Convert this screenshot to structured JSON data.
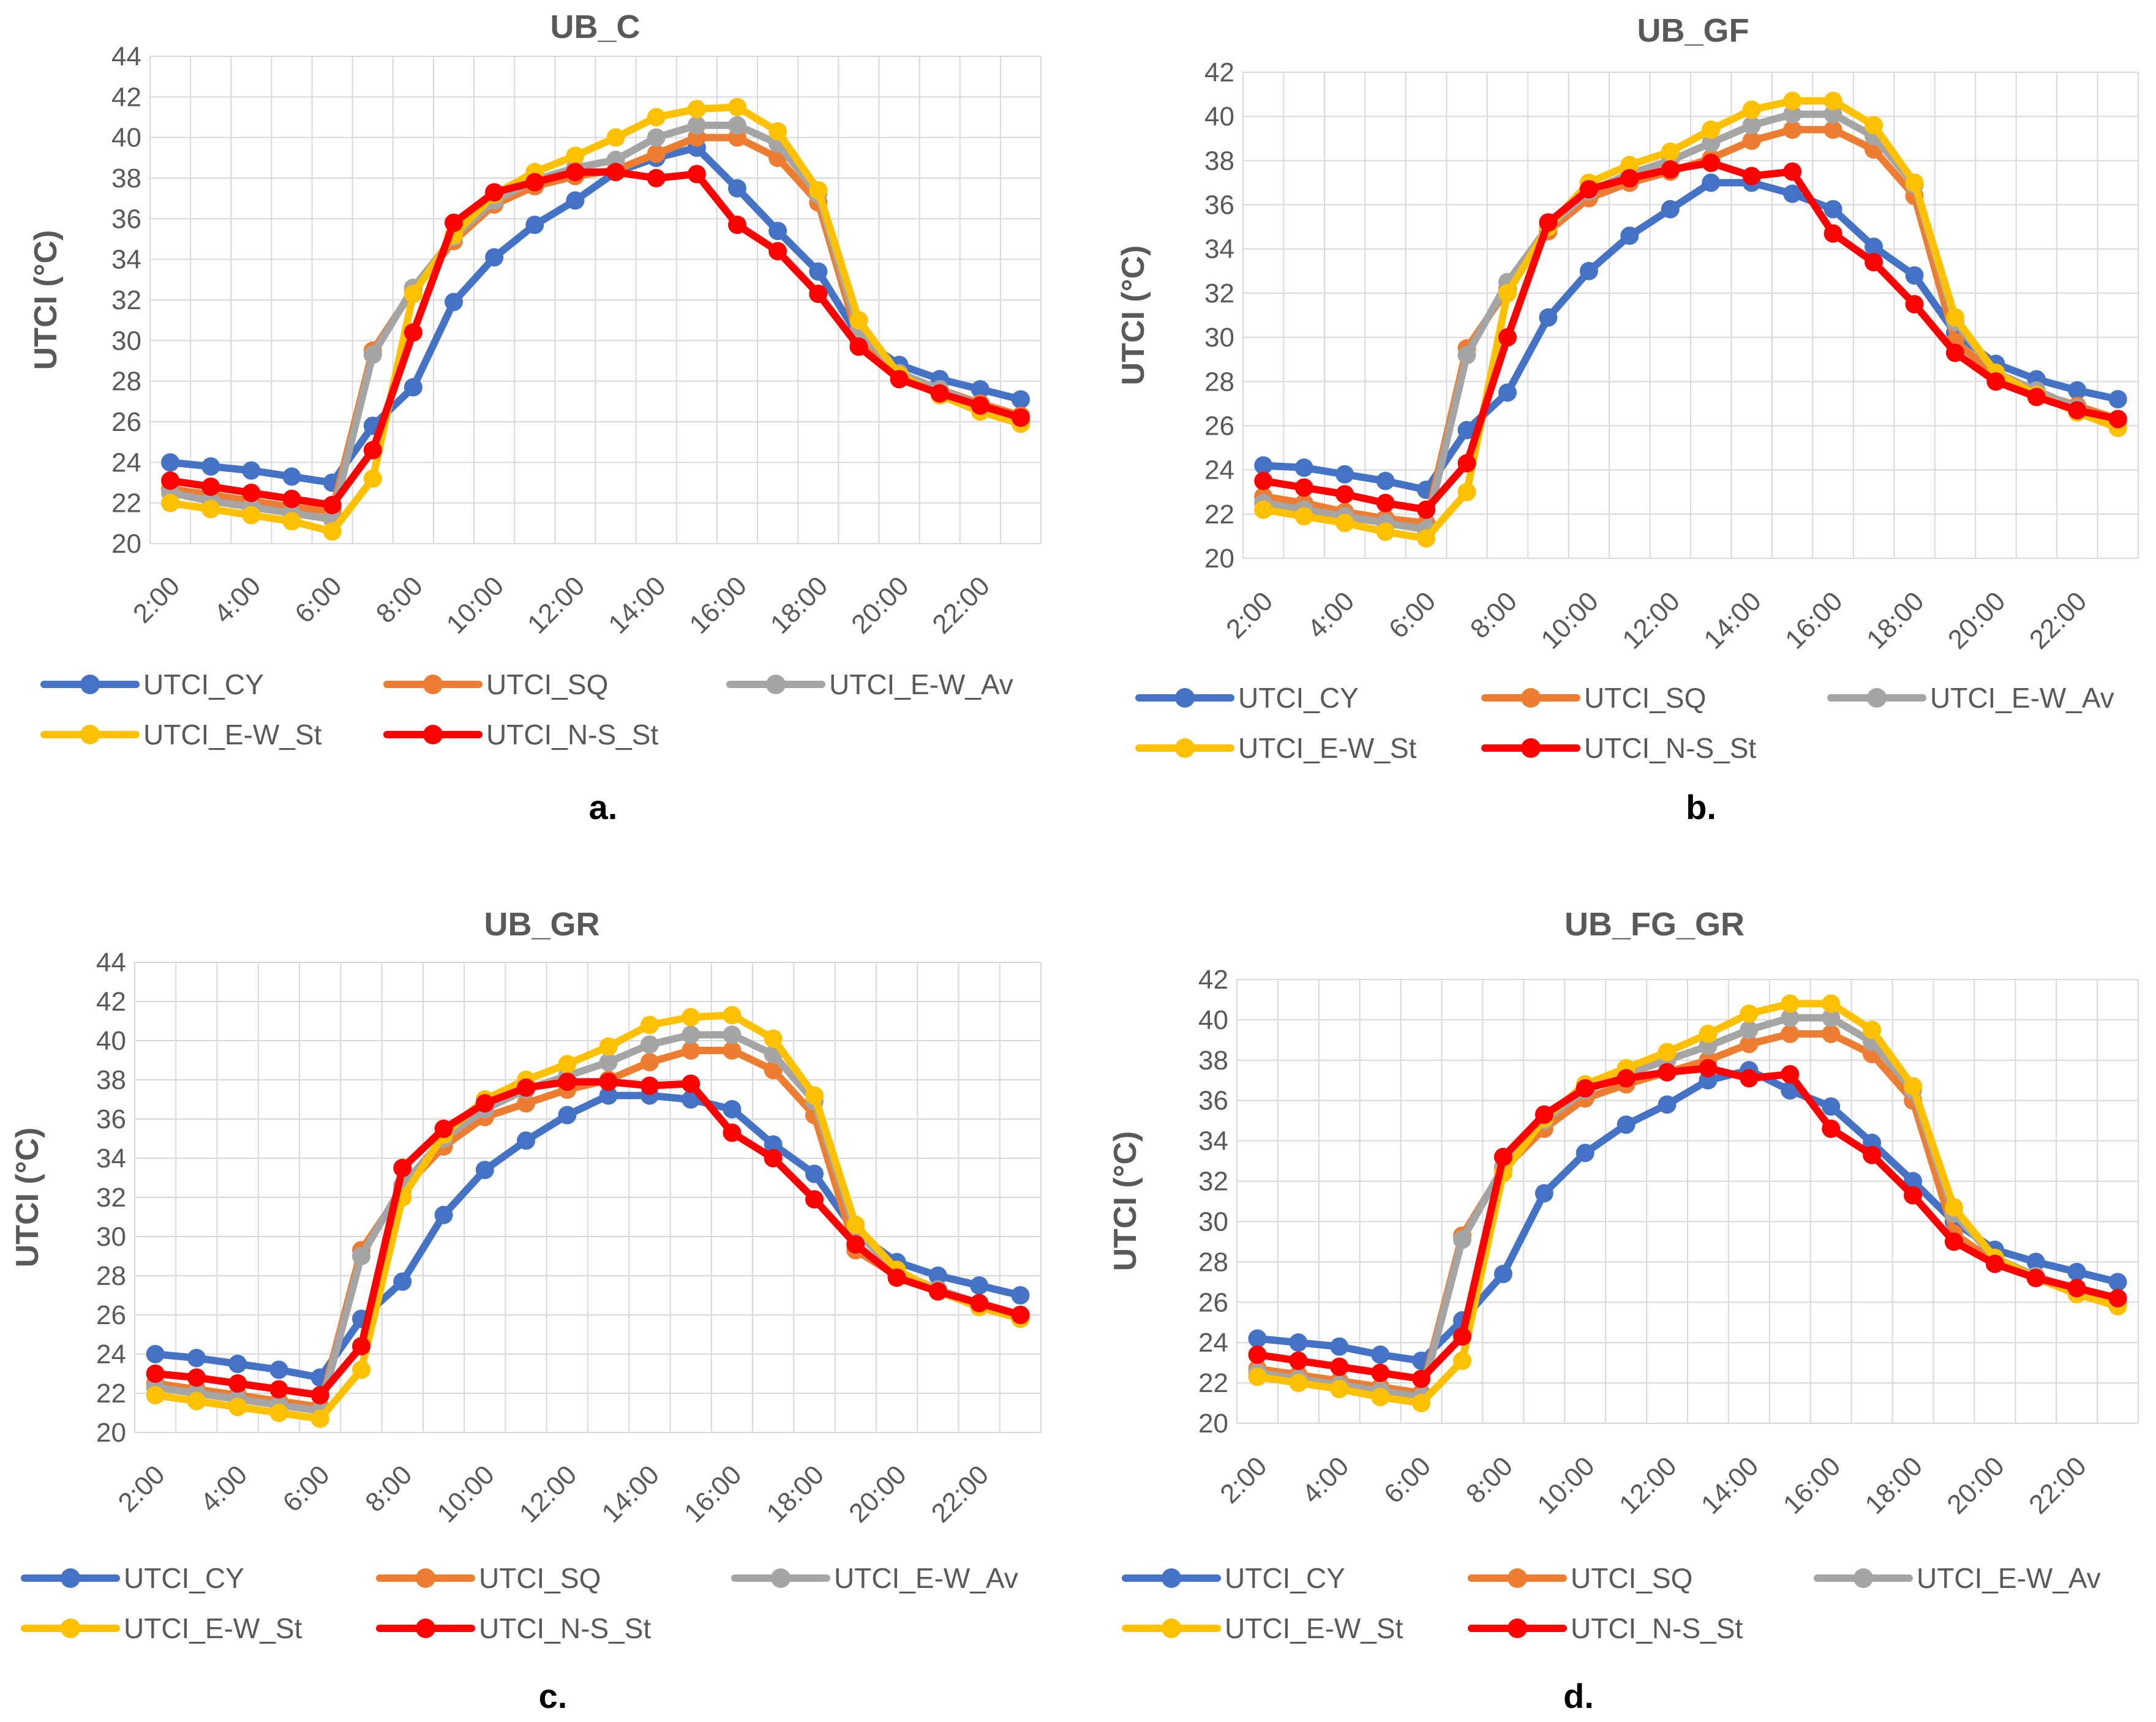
{
  "panel_letters": [
    "a.",
    "b.",
    "c.",
    "d."
  ],
  "chart_data": [
    {
      "type": "line",
      "title": "UB_C",
      "xlabel": "",
      "ylabel": "UTCI (°C)",
      "ylim": [
        20,
        44
      ],
      "yticks": [
        20,
        22,
        24,
        26,
        28,
        30,
        32,
        34,
        36,
        38,
        40,
        42,
        44
      ],
      "categories": [
        "2:00",
        "3:00",
        "4:00",
        "5:00",
        "6:00",
        "7:00",
        "8:00",
        "9:00",
        "10:00",
        "11:00",
        "12:00",
        "13:00",
        "14:00",
        "15:00",
        "16:00",
        "17:00",
        "18:00",
        "19:00",
        "20:00",
        "21:00",
        "22:00",
        "23:00"
      ],
      "xtick_labels": [
        "2:00",
        "4:00",
        "6:00",
        "8:00",
        "10:00",
        "12:00",
        "14:00",
        "16:00",
        "18:00",
        "20:00",
        "22:00"
      ],
      "grid": true,
      "legend": "bottom",
      "series": [
        {
          "name": "UTCI_CY",
          "color": "#4472C4",
          "values": [
            24.0,
            23.8,
            23.6,
            23.3,
            23.0,
            25.8,
            27.7,
            31.9,
            34.1,
            35.7,
            36.9,
            38.3,
            39.0,
            39.5,
            37.5,
            35.4,
            33.4,
            30.2,
            28.8,
            28.1,
            27.6,
            27.1
          ]
        },
        {
          "name": "UTCI_SQ",
          "color": "#ED7D31",
          "values": [
            22.7,
            22.4,
            22.1,
            21.8,
            21.6,
            29.5,
            32.5,
            34.9,
            36.7,
            37.6,
            38.1,
            38.4,
            39.2,
            40.0,
            40.0,
            39.0,
            36.8,
            30.0,
            28.3,
            27.6,
            26.9,
            26.3
          ]
        },
        {
          "name": "UTCI_E-W_Av",
          "color": "#A5A5A5",
          "values": [
            22.5,
            22.1,
            21.8,
            21.5,
            21.2,
            29.3,
            32.6,
            35.1,
            36.9,
            37.9,
            38.5,
            38.9,
            40.0,
            40.6,
            40.6,
            39.7,
            37.2,
            30.5,
            28.4,
            27.6,
            26.8,
            26.1
          ]
        },
        {
          "name": "UTCI_E-W_St",
          "color": "#FFC000",
          "values": [
            22.0,
            21.7,
            21.4,
            21.1,
            20.6,
            23.2,
            32.3,
            35.2,
            37.2,
            38.3,
            39.1,
            40.0,
            41.0,
            41.4,
            41.5,
            40.3,
            37.4,
            31.0,
            28.3,
            27.3,
            26.5,
            25.9
          ]
        },
        {
          "name": "UTCI_N-S_St",
          "color": "#FF0000",
          "values": [
            23.1,
            22.8,
            22.5,
            22.2,
            21.9,
            24.6,
            30.4,
            35.8,
            37.3,
            37.8,
            38.3,
            38.3,
            38.0,
            38.2,
            35.7,
            34.4,
            32.3,
            29.7,
            28.1,
            27.4,
            26.8,
            26.2
          ]
        }
      ]
    },
    {
      "type": "line",
      "title": "UB_GF",
      "xlabel": "",
      "ylabel": "UTCI (°C)",
      "ylim": [
        20,
        42
      ],
      "yticks": [
        20,
        22,
        24,
        26,
        28,
        30,
        32,
        34,
        36,
        38,
        40,
        42
      ],
      "categories": [
        "2:00",
        "3:00",
        "4:00",
        "5:00",
        "6:00",
        "7:00",
        "8:00",
        "9:00",
        "10:00",
        "11:00",
        "12:00",
        "13:00",
        "14:00",
        "15:00",
        "16:00",
        "17:00",
        "18:00",
        "19:00",
        "20:00",
        "21:00",
        "22:00",
        "23:00"
      ],
      "xtick_labels": [
        "2:00",
        "4:00",
        "6:00",
        "8:00",
        "10:00",
        "12:00",
        "14:00",
        "16:00",
        "18:00",
        "20:00",
        "22:00"
      ],
      "grid": true,
      "legend": "bottom",
      "series": [
        {
          "name": "UTCI_CY",
          "color": "#4472C4",
          "values": [
            24.2,
            24.1,
            23.8,
            23.5,
            23.1,
            25.8,
            27.5,
            30.9,
            33.0,
            34.6,
            35.8,
            37.0,
            37.0,
            36.5,
            35.8,
            34.1,
            32.8,
            30.2,
            28.8,
            28.1,
            27.6,
            27.2
          ]
        },
        {
          "name": "UTCI_SQ",
          "color": "#ED7D31",
          "values": [
            22.8,
            22.5,
            22.1,
            21.8,
            21.6,
            29.5,
            32.2,
            34.8,
            36.3,
            37.0,
            37.5,
            38.1,
            38.9,
            39.4,
            39.4,
            38.5,
            36.4,
            29.8,
            28.3,
            27.5,
            26.9,
            26.3
          ]
        },
        {
          "name": "UTCI_E-W_Av",
          "color": "#A5A5A5",
          "values": [
            22.5,
            22.2,
            21.9,
            21.6,
            21.3,
            29.2,
            32.5,
            35.0,
            36.6,
            37.4,
            38.0,
            38.8,
            39.6,
            40.1,
            40.1,
            39.1,
            36.9,
            30.7,
            28.4,
            27.6,
            26.8,
            26.1
          ]
        },
        {
          "name": "UTCI_E-W_St",
          "color": "#FFC000",
          "values": [
            22.2,
            21.9,
            21.6,
            21.2,
            20.9,
            23.0,
            32.0,
            35.0,
            37.0,
            37.8,
            38.4,
            39.4,
            40.3,
            40.7,
            40.7,
            39.6,
            37.0,
            30.9,
            28.4,
            27.4,
            26.6,
            25.9
          ]
        },
        {
          "name": "UTCI_N-S_St",
          "color": "#FF0000",
          "values": [
            23.5,
            23.2,
            22.9,
            22.5,
            22.2,
            24.3,
            30.0,
            35.2,
            36.7,
            37.2,
            37.6,
            37.9,
            37.3,
            37.5,
            34.7,
            33.4,
            31.5,
            29.3,
            28.0,
            27.3,
            26.7,
            26.3
          ]
        }
      ]
    },
    {
      "type": "line",
      "title": "UB_GR",
      "xlabel": "",
      "ylabel": "UTCI (°C)",
      "ylim": [
        20,
        44
      ],
      "yticks": [
        20,
        22,
        24,
        26,
        28,
        30,
        32,
        34,
        36,
        38,
        40,
        42,
        44
      ],
      "categories": [
        "2:00",
        "3:00",
        "4:00",
        "5:00",
        "6:00",
        "7:00",
        "8:00",
        "9:00",
        "10:00",
        "11:00",
        "12:00",
        "13:00",
        "14:00",
        "15:00",
        "16:00",
        "17:00",
        "18:00",
        "19:00",
        "20:00",
        "21:00",
        "22:00",
        "23:00"
      ],
      "xtick_labels": [
        "2:00",
        "4:00",
        "6:00",
        "8:00",
        "10:00",
        "12:00",
        "14:00",
        "16:00",
        "18:00",
        "20:00",
        "22:00"
      ],
      "grid": true,
      "legend": "bottom",
      "series": [
        {
          "name": "UTCI_CY",
          "color": "#4472C4",
          "values": [
            24.0,
            23.8,
            23.5,
            23.2,
            22.8,
            25.8,
            27.7,
            31.1,
            33.4,
            34.9,
            36.2,
            37.2,
            37.2,
            37.0,
            36.5,
            34.7,
            33.2,
            30.2,
            28.7,
            28.0,
            27.5,
            27.0
          ]
        },
        {
          "name": "UTCI_SQ",
          "color": "#ED7D31",
          "values": [
            22.5,
            22.2,
            21.9,
            21.6,
            21.3,
            29.3,
            32.4,
            34.6,
            36.1,
            36.8,
            37.5,
            38.0,
            38.9,
            39.5,
            39.5,
            38.5,
            36.2,
            29.3,
            28.0,
            27.2,
            26.6,
            26.0
          ]
        },
        {
          "name": "UTCI_E-W_Av",
          "color": "#A5A5A5",
          "values": [
            22.3,
            22.0,
            21.7,
            21.4,
            21.1,
            29.0,
            32.6,
            35.0,
            36.5,
            37.5,
            38.2,
            38.9,
            39.8,
            40.3,
            40.3,
            39.3,
            36.9,
            30.3,
            28.2,
            27.3,
            26.6,
            25.9
          ]
        },
        {
          "name": "UTCI_E-W_St",
          "color": "#FFC000",
          "values": [
            21.9,
            21.6,
            21.3,
            21.0,
            20.7,
            23.2,
            32.0,
            35.2,
            37.0,
            38.0,
            38.8,
            39.7,
            40.8,
            41.2,
            41.3,
            40.1,
            37.2,
            30.6,
            28.3,
            27.2,
            26.4,
            25.8
          ]
        },
        {
          "name": "UTCI_N-S_St",
          "color": "#FF0000",
          "values": [
            23.0,
            22.8,
            22.5,
            22.2,
            21.9,
            24.4,
            33.5,
            35.5,
            36.8,
            37.6,
            37.9,
            37.9,
            37.7,
            37.8,
            35.3,
            34.0,
            31.9,
            29.6,
            27.9,
            27.2,
            26.6,
            26.0
          ]
        }
      ]
    },
    {
      "type": "line",
      "title": "UB_FG_GR",
      "xlabel": "",
      "ylabel": "UTCI (°C)",
      "ylim": [
        20,
        42
      ],
      "yticks": [
        20,
        22,
        24,
        26,
        28,
        30,
        32,
        34,
        36,
        38,
        40,
        42
      ],
      "categories": [
        "2:00",
        "3:00",
        "4:00",
        "5:00",
        "6:00",
        "7:00",
        "8:00",
        "9:00",
        "10:00",
        "11:00",
        "12:00",
        "13:00",
        "14:00",
        "15:00",
        "16:00",
        "17:00",
        "18:00",
        "19:00",
        "20:00",
        "21:00",
        "22:00",
        "23:00"
      ],
      "xtick_labels": [
        "2:00",
        "4:00",
        "6:00",
        "8:00",
        "10:00",
        "12:00",
        "14:00",
        "16:00",
        "18:00",
        "20:00",
        "22:00"
      ],
      "grid": true,
      "legend": "bottom",
      "series": [
        {
          "name": "UTCI_CY",
          "color": "#4472C4",
          "values": [
            24.2,
            24.0,
            23.8,
            23.4,
            23.1,
            25.1,
            27.4,
            31.4,
            33.4,
            34.8,
            35.8,
            37.0,
            37.5,
            36.5,
            35.7,
            33.9,
            32.0,
            30.0,
            28.6,
            28.0,
            27.5,
            27.0
          ]
        },
        {
          "name": "UTCI_SQ",
          "color": "#ED7D31",
          "values": [
            22.7,
            22.4,
            22.1,
            21.8,
            21.5,
            29.3,
            32.6,
            34.6,
            36.1,
            36.8,
            37.4,
            38.0,
            38.8,
            39.3,
            39.3,
            38.3,
            36.0,
            29.4,
            28.0,
            27.3,
            26.6,
            26.0
          ]
        },
        {
          "name": "UTCI_E-W_Av",
          "color": "#A5A5A5",
          "values": [
            22.5,
            22.2,
            21.9,
            21.6,
            21.3,
            29.1,
            32.7,
            35.0,
            36.5,
            37.3,
            38.0,
            38.7,
            39.5,
            40.1,
            40.1,
            38.9,
            36.5,
            30.4,
            28.2,
            27.3,
            26.6,
            25.9
          ]
        },
        {
          "name": "UTCI_E-W_St",
          "color": "#FFC000",
          "values": [
            22.3,
            22.0,
            21.7,
            21.3,
            21.0,
            23.1,
            32.4,
            35.1,
            36.8,
            37.6,
            38.4,
            39.3,
            40.3,
            40.8,
            40.8,
            39.5,
            36.7,
            30.7,
            28.2,
            27.2,
            26.4,
            25.8
          ]
        },
        {
          "name": "UTCI_N-S_St",
          "color": "#FF0000",
          "values": [
            23.4,
            23.1,
            22.8,
            22.5,
            22.2,
            24.3,
            33.2,
            35.3,
            36.6,
            37.1,
            37.4,
            37.6,
            37.1,
            37.3,
            34.6,
            33.3,
            31.3,
            29.0,
            27.9,
            27.2,
            26.7,
            26.2
          ]
        }
      ]
    }
  ]
}
